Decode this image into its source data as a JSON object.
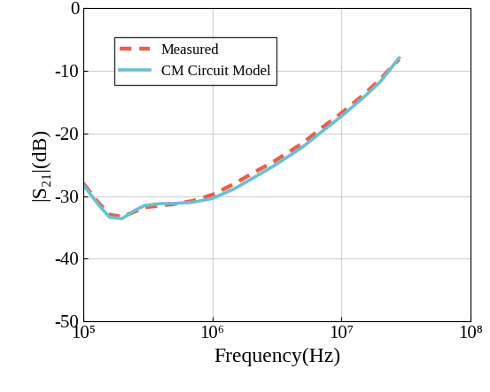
{
  "chart_data": {
    "type": "line",
    "x_label": "Frequency(Hz)",
    "y_label": "|S₂₁|(dB)",
    "log": "x",
    "grid": true,
    "legend": "upper left",
    "xlim": [
      100000,
      100000000
    ],
    "xticks": [
      {
        "value": 100000,
        "label": "10⁵"
      },
      {
        "value": 1000000,
        "label": "10⁶"
      },
      {
        "value": 10000000,
        "label": "10⁷"
      },
      {
        "value": 100000000,
        "label": "10⁸"
      }
    ],
    "ylim": [
      -50,
      0
    ],
    "yticks": [
      -50,
      -40,
      -30,
      -20,
      -10,
      0
    ],
    "series": [
      {
        "name": "Measured",
        "color": "#e8604c",
        "line_style": "dashed",
        "x": [
          100000,
          130000,
          160000,
          200000,
          250000,
          300000,
          400000,
          500000,
          700000,
          1000000,
          1500000,
          2000000,
          3000000,
          5000000,
          7000000,
          10000000,
          15000000,
          20000000,
          28000000
        ],
        "values": [
          -28,
          -31,
          -33,
          -33.3,
          -32.5,
          -31.8,
          -31.5,
          -31.3,
          -30.8,
          -29.8,
          -28,
          -26.5,
          -24.5,
          -21.6,
          -19.2,
          -16.8,
          -13.8,
          -11.4,
          -8.2
        ]
      },
      {
        "name": "CM Circuit Model",
        "color": "#6bbfd0",
        "line_style": "solid",
        "x": [
          100000,
          130000,
          160000,
          200000,
          250000,
          300000,
          400000,
          500000,
          700000,
          1000000,
          1500000,
          2000000,
          3000000,
          5000000,
          7000000,
          10000000,
          15000000,
          20000000,
          28000000
        ],
        "values": [
          -28.2,
          -31.3,
          -33.4,
          -33.6,
          -32.3,
          -31.5,
          -31.2,
          -31.2,
          -31,
          -30.4,
          -28.8,
          -27.3,
          -25.2,
          -22.2,
          -19.8,
          -17.3,
          -14.2,
          -11.8,
          -8
        ]
      }
    ]
  }
}
